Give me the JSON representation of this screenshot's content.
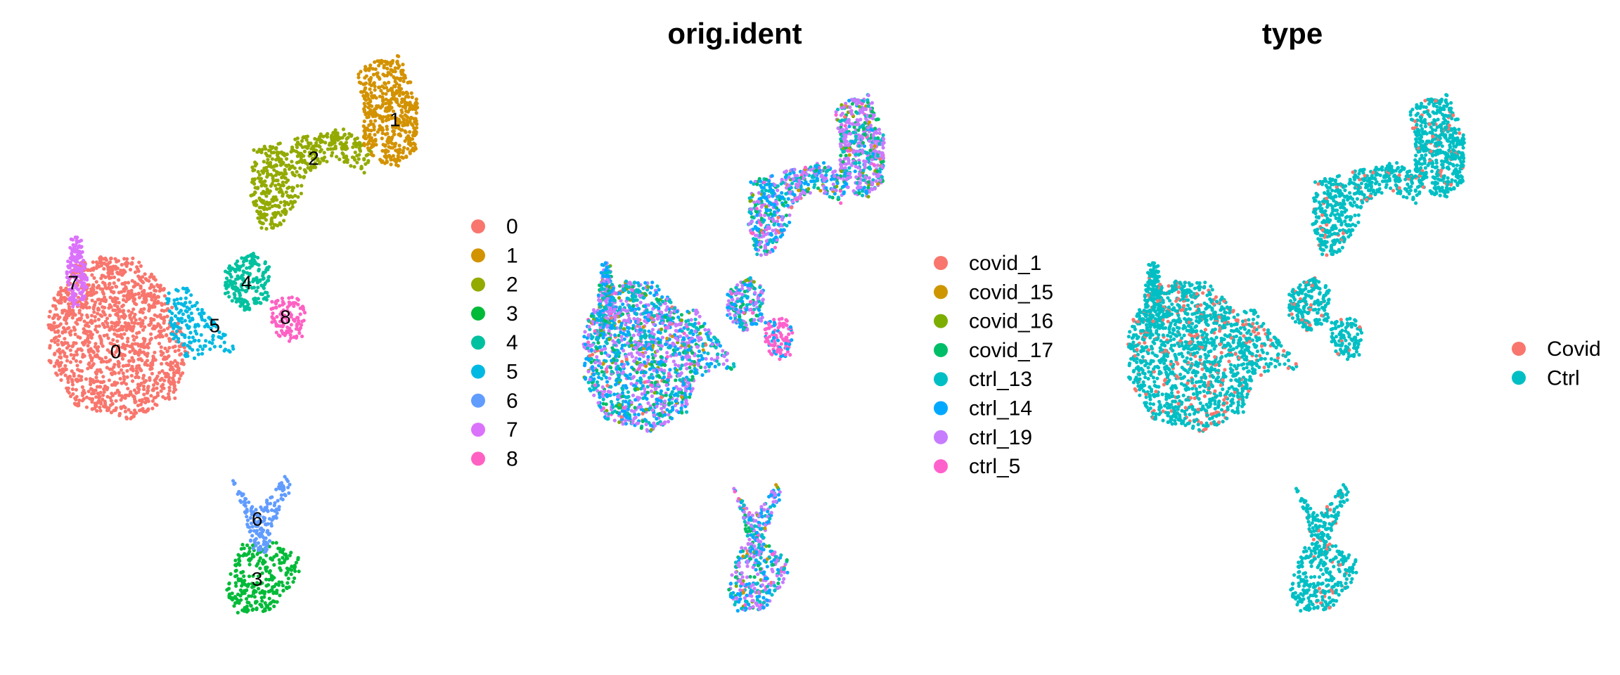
{
  "chart_data": [
    {
      "type": "scatter",
      "title": "",
      "group_by": "seurat_clusters",
      "xlabel": "",
      "ylabel": "",
      "axes": "none",
      "grid": false,
      "legend_position": "right",
      "legend": [
        {
          "label": "0",
          "color": "#F8766D"
        },
        {
          "label": "1",
          "color": "#D39200"
        },
        {
          "label": "2",
          "color": "#93AA00"
        },
        {
          "label": "3",
          "color": "#00BA38"
        },
        {
          "label": "4",
          "color": "#00C19F"
        },
        {
          "label": "5",
          "color": "#00B9E3"
        },
        {
          "label": "6",
          "color": "#619CFF"
        },
        {
          "label": "7",
          "color": "#DB72FB"
        },
        {
          "label": "8",
          "color": "#FF61C3"
        }
      ],
      "cluster_labels": [
        "0",
        "1",
        "2",
        "3",
        "4",
        "5",
        "6",
        "7",
        "8"
      ]
    },
    {
      "type": "scatter",
      "title": "orig.ident",
      "group_by": "orig.ident",
      "xlabel": "",
      "ylabel": "",
      "axes": "none",
      "grid": false,
      "legend_position": "right",
      "legend": [
        {
          "label": "covid_1",
          "color": "#F8766D"
        },
        {
          "label": "covid_15",
          "color": "#CD9600"
        },
        {
          "label": "covid_16",
          "color": "#7CAE00"
        },
        {
          "label": "covid_17",
          "color": "#00BE67"
        },
        {
          "label": "ctrl_13",
          "color": "#00BFC4"
        },
        {
          "label": "ctrl_14",
          "color": "#00A9FF"
        },
        {
          "label": "ctrl_19",
          "color": "#C77CFF"
        },
        {
          "label": "ctrl_5",
          "color": "#FF61CC"
        }
      ]
    },
    {
      "type": "scatter",
      "title": "type",
      "group_by": "type",
      "xlabel": "",
      "ylabel": "",
      "axes": "none",
      "grid": false,
      "legend_position": "right",
      "legend": [
        {
          "label": "Covid",
          "color": "#F8766D"
        },
        {
          "label": "Ctrl",
          "color": "#00BFC4"
        }
      ]
    }
  ],
  "clusters": [
    {
      "id": "0",
      "n": 1300,
      "shape": [
        [
          -5.5,
          -1.0
        ],
        [
          -4.5,
          -1.0
        ],
        [
          -3.6,
          -1.7
        ],
        [
          -2.9,
          -3.1
        ],
        [
          -3.3,
          -4.3
        ],
        [
          -4.6,
          -4.8
        ],
        [
          -6.1,
          -4.5
        ],
        [
          -6.9,
          -3.5
        ],
        [
          -6.9,
          -2.2
        ],
        [
          -6.2,
          -1.2
        ]
      ]
    },
    {
      "id": "1",
      "n": 520,
      "shape": [
        [
          2.5,
          3.6
        ],
        [
          3.0,
          3.7
        ],
        [
          3.4,
          3.0
        ],
        [
          3.6,
          2.4
        ],
        [
          3.5,
          1.5
        ],
        [
          3.0,
          1.1
        ],
        [
          2.4,
          1.2
        ],
        [
          2.0,
          1.6
        ],
        [
          2.0,
          2.6
        ],
        [
          1.8,
          3.4
        ]
      ]
    },
    {
      "id": "2",
      "n": 500,
      "shape": [
        [
          -1.1,
          1.5
        ],
        [
          0.3,
          1.8
        ],
        [
          1.5,
          2.0
        ],
        [
          2.2,
          1.5
        ],
        [
          2.1,
          0.9
        ],
        [
          1.2,
          1.3
        ],
        [
          0.4,
          0.9
        ],
        [
          0.2,
          0.3
        ],
        [
          -0.3,
          -0.3
        ],
        [
          -0.9,
          -0.4
        ],
        [
          -1.2,
          0.4
        ]
      ]
    },
    {
      "id": "3",
      "n": 260,
      "shape": [
        [
          -1.5,
          -7.7
        ],
        [
          -0.5,
          -7.6
        ],
        [
          0.3,
          -8.1
        ],
        [
          0.0,
          -8.7
        ],
        [
          -0.7,
          -9.3
        ],
        [
          -1.6,
          -9.3
        ],
        [
          -1.9,
          -8.8
        ]
      ]
    },
    {
      "id": "4",
      "n": 200,
      "shape": [
        [
          -1.5,
          -1.0
        ],
        [
          -1.1,
          -0.9
        ],
        [
          -0.6,
          -1.2
        ],
        [
          -0.7,
          -2.0
        ],
        [
          -1.3,
          -2.3
        ],
        [
          -1.9,
          -1.9
        ],
        [
          -1.9,
          -1.3
        ]
      ]
    },
    {
      "id": "5",
      "n": 160,
      "shape": [
        [
          -3.6,
          -1.9
        ],
        [
          -3.0,
          -1.6
        ],
        [
          -2.6,
          -2.2
        ],
        [
          -2.0,
          -2.7
        ],
        [
          -1.6,
          -3.2
        ],
        [
          -2.3,
          -3.3
        ],
        [
          -3.0,
          -3.4
        ],
        [
          -3.5,
          -2.8
        ]
      ]
    },
    {
      "id": "6",
      "n": 170,
      "shape": [
        [
          -1.7,
          -6.2
        ],
        [
          -1.0,
          -6.9
        ],
        [
          -0.2,
          -6.1
        ],
        [
          0.0,
          -6.4
        ],
        [
          -0.6,
          -7.4
        ],
        [
          -0.7,
          -7.9
        ],
        [
          -1.2,
          -7.9
        ],
        [
          -1.3,
          -7.1
        ]
      ]
    },
    {
      "id": "7",
      "n": 150,
      "shape": [
        [
          -6.3,
          -0.6
        ],
        [
          -6.0,
          -0.5
        ],
        [
          -5.9,
          -1.0
        ],
        [
          -5.8,
          -1.6
        ],
        [
          -5.9,
          -2.1
        ],
        [
          -6.3,
          -2.2
        ],
        [
          -6.4,
          -1.5
        ]
      ]
    },
    {
      "id": "8",
      "n": 110,
      "shape": [
        [
          -0.6,
          -2.0
        ],
        [
          0.1,
          -1.9
        ],
        [
          0.4,
          -2.3
        ],
        [
          0.3,
          -2.9
        ],
        [
          -0.2,
          -3.0
        ],
        [
          -0.6,
          -2.7
        ]
      ]
    }
  ],
  "centroids": [
    {
      "id": "0",
      "x": -5.0,
      "y": -3.2
    },
    {
      "id": "1",
      "x": 2.9,
      "y": 2.2
    },
    {
      "id": "2",
      "x": 0.6,
      "y": 1.3
    },
    {
      "id": "3",
      "x": -1.0,
      "y": -8.5
    },
    {
      "id": "4",
      "x": -1.3,
      "y": -1.6
    },
    {
      "id": "5",
      "x": -2.2,
      "y": -2.6
    },
    {
      "id": "6",
      "x": -1.0,
      "y": -7.1
    },
    {
      "id": "7",
      "x": -6.2,
      "y": -1.6
    },
    {
      "id": "8",
      "x": -0.2,
      "y": -2.4
    }
  ]
}
